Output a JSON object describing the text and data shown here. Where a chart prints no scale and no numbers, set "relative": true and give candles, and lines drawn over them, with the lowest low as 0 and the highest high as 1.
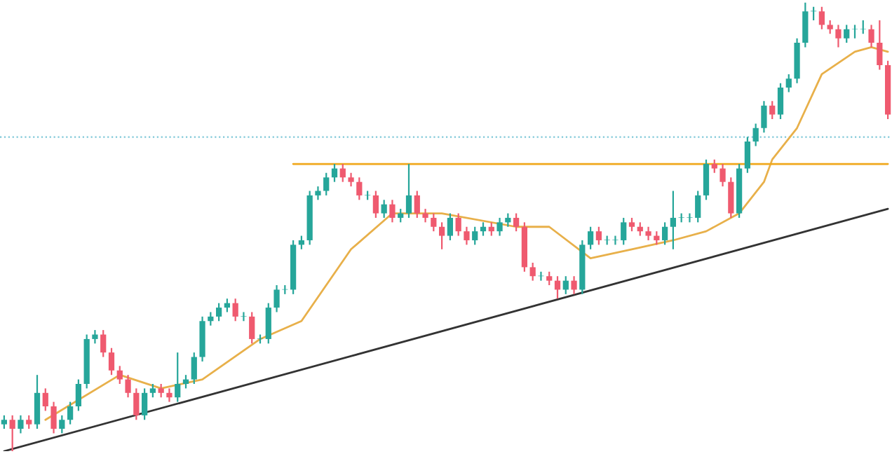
{
  "chart_data": {
    "type": "candlestick",
    "relative": true,
    "legend": false,
    "tick_labels": false,
    "categories": [
      null,
      null,
      null,
      null,
      null,
      null,
      null,
      null,
      null,
      null,
      null,
      null,
      null,
      null,
      null,
      null,
      null,
      null,
      null,
      null,
      null,
      null,
      null,
      null,
      null,
      null,
      null,
      null,
      null,
      null,
      null,
      null,
      null,
      null,
      null,
      null,
      null,
      null,
      null,
      null,
      null,
      null,
      null,
      null,
      null,
      null,
      null,
      null,
      null,
      null,
      null,
      null,
      null,
      null,
      null,
      null,
      null,
      null,
      null,
      null,
      null,
      null,
      null,
      null,
      null,
      null,
      null,
      null,
      null,
      null,
      null,
      null,
      null,
      null,
      null,
      null,
      null,
      null,
      null,
      null,
      null,
      null,
      null,
      null,
      null,
      null,
      null,
      null,
      null,
      null,
      null,
      null,
      null,
      null,
      null,
      null,
      null,
      null,
      null,
      null,
      null,
      null,
      null,
      null,
      null,
      null,
      null,
      null
    ],
    "colors": [
      "#26a69a",
      "#ef5a6f",
      "#26a69a",
      "#ef5a6f",
      "#26a69a",
      "#ef5a6f",
      "#ef5a6f",
      "#26a69a",
      "#26a69a",
      "#26a69a",
      "#26a69a",
      "#26a69a",
      "#ef5a6f",
      "#ef5a6f",
      "#ef5a6f",
      "#ef5a6f",
      "#ef5a6f",
      "#26a69a",
      "#26a69a",
      "#ef5a6f",
      "#ef5a6f",
      "#26a69a",
      "#26a69a",
      "#26a69a",
      "#26a69a",
      "#26a69a",
      "#26a69a",
      "#26a69a",
      "#ef5a6f",
      "#26a69a",
      "#ef5a6f",
      "#26a69a",
      "#26a69a",
      "#26a69a",
      "#26a69a",
      "#26a69a",
      "#26a69a",
      "#26a69a",
      "#26a69a",
      "#26a69a",
      "#26a69a",
      "#ef5a6f",
      "#ef5a6f",
      "#ef5a6f",
      "#26a69a",
      "#ef5a6f",
      "#26a69a",
      "#ef5a6f",
      "#26a69a",
      "#26a69a",
      "#ef5a6f",
      "#ef5a6f",
      "#ef5a6f",
      "#ef5a6f",
      "#26a69a",
      "#ef5a6f",
      "#ef5a6f",
      "#26a69a",
      "#26a69a",
      "#ef5a6f",
      "#26a69a",
      "#26a69a",
      "#ef5a6f",
      "#ef5a6f",
      "#ef5a6f",
      "#26a69a",
      "#ef5a6f",
      "#ef5a6f",
      "#26a69a",
      "#ef5a6f",
      "#26a69a",
      "#26a69a",
      "#ef5a6f",
      "#26a69a",
      "#26a69a",
      "#26a69a",
      "#ef5a6f",
      "#ef5a6f",
      "#ef5a6f",
      "#ef5a6f",
      "#26a69a",
      "#26a69a",
      "#26a69a",
      "#26a69a",
      "#26a69a",
      "#26a69a",
      "#ef5a6f",
      "#ef5a6f",
      "#ef5a6f",
      "#26a69a",
      "#26a69a",
      "#26a69a",
      "#26a69a",
      "#ef5a6f",
      "#26a69a",
      "#26a69a",
      "#26a69a",
      "#26a69a",
      "#26a69a",
      "#ef5a6f",
      "#ef5a6f",
      "#ef5a6f",
      "#26a69a",
      "#26a69a",
      "#26a69a",
      "#ef5a6f",
      "#ef5a6f",
      "#ef5a6f"
    ],
    "ohlc": [
      [
        0.06,
        0.08,
        0.05,
        0.07
      ],
      [
        0.07,
        0.08,
        0,
        0.05
      ],
      [
        0.05,
        0.08,
        0.04,
        0.07
      ],
      [
        0.07,
        0.08,
        0.05,
        0.06
      ],
      [
        0.06,
        0.17,
        0.05,
        0.13
      ],
      [
        0.13,
        0.14,
        0.09,
        0.1
      ],
      [
        0.1,
        0.11,
        0.04,
        0.05
      ],
      [
        0.05,
        0.08,
        0.04,
        0.07
      ],
      [
        0.07,
        0.11,
        0.06,
        0.1
      ],
      [
        0.1,
        0.16,
        0.09,
        0.15
      ],
      [
        0.15,
        0.26,
        0.14,
        0.25
      ],
      [
        0.25,
        0.27,
        0.24,
        0.26
      ],
      [
        0.26,
        0.27,
        0.21,
        0.22
      ],
      [
        0.22,
        0.23,
        0.17,
        0.18
      ],
      [
        0.18,
        0.19,
        0.15,
        0.16
      ],
      [
        0.16,
        0.17,
        0.12,
        0.13
      ],
      [
        0.13,
        0.14,
        0.07,
        0.08
      ],
      [
        0.08,
        0.14,
        0.07,
        0.13
      ],
      [
        0.13,
        0.15,
        0.12,
        0.14
      ],
      [
        0.14,
        0.15,
        0.12,
        0.13
      ],
      [
        0.13,
        0.14,
        0.11,
        0.12
      ],
      [
        0.12,
        0.22,
        0.11,
        0.15
      ],
      [
        0.15,
        0.17,
        0.14,
        0.16
      ],
      [
        0.16,
        0.22,
        0.15,
        0.21
      ],
      [
        0.21,
        0.3,
        0.2,
        0.29
      ],
      [
        0.29,
        0.31,
        0.28,
        0.3
      ],
      [
        0.3,
        0.33,
        0.29,
        0.32
      ],
      [
        0.32,
        0.34,
        0.31,
        0.33
      ],
      [
        0.33,
        0.34,
        0.29,
        0.3
      ],
      [
        0.3,
        0.31,
        0.29,
        0.3
      ],
      [
        0.3,
        0.31,
        0.24,
        0.25
      ],
      [
        0.25,
        0.26,
        0.24,
        0.25
      ],
      [
        0.25,
        0.33,
        0.24,
        0.32
      ],
      [
        0.32,
        0.37,
        0.31,
        0.36
      ],
      [
        0.36,
        0.37,
        0.35,
        0.36
      ],
      [
        0.36,
        0.47,
        0.35,
        0.46
      ],
      [
        0.46,
        0.48,
        0.45,
        0.47
      ],
      [
        0.47,
        0.58,
        0.46,
        0.57
      ],
      [
        0.57,
        0.59,
        0.56,
        0.58
      ],
      [
        0.58,
        0.62,
        0.57,
        0.61
      ],
      [
        0.61,
        0.64,
        0.6,
        0.63
      ],
      [
        0.63,
        0.64,
        0.6,
        0.61
      ],
      [
        0.61,
        0.62,
        0.59,
        0.6
      ],
      [
        0.6,
        0.61,
        0.56,
        0.57
      ],
      [
        0.57,
        0.58,
        0.56,
        0.57
      ],
      [
        0.57,
        0.58,
        0.52,
        0.53
      ],
      [
        0.53,
        0.56,
        0.52,
        0.55
      ],
      [
        0.55,
        0.56,
        0.51,
        0.52
      ],
      [
        0.52,
        0.54,
        0.51,
        0.53
      ],
      [
        0.53,
        0.64,
        0.52,
        0.57
      ],
      [
        0.57,
        0.58,
        0.52,
        0.53
      ],
      [
        0.53,
        0.54,
        0.51,
        0.52
      ],
      [
        0.52,
        0.53,
        0.49,
        0.5
      ],
      [
        0.5,
        0.51,
        0.45,
        0.48
      ],
      [
        0.48,
        0.53,
        0.47,
        0.52
      ],
      [
        0.52,
        0.53,
        0.48,
        0.49
      ],
      [
        0.49,
        0.5,
        0.46,
        0.47
      ],
      [
        0.47,
        0.5,
        0.46,
        0.49
      ],
      [
        0.49,
        0.51,
        0.48,
        0.5
      ],
      [
        0.5,
        0.51,
        0.48,
        0.49
      ],
      [
        0.49,
        0.52,
        0.48,
        0.51
      ],
      [
        0.51,
        0.53,
        0.5,
        0.52
      ],
      [
        0.52,
        0.53,
        0.49,
        0.5
      ],
      [
        0.5,
        0.51,
        0.4,
        0.41
      ],
      [
        0.41,
        0.42,
        0.38,
        0.39
      ],
      [
        0.39,
        0.4,
        0.38,
        0.39
      ],
      [
        0.39,
        0.4,
        0.37,
        0.38
      ],
      [
        0.38,
        0.39,
        0.34,
        0.36
      ],
      [
        0.36,
        0.39,
        0.35,
        0.38
      ],
      [
        0.38,
        0.39,
        0.35,
        0.36
      ],
      [
        0.36,
        0.47,
        0.35,
        0.46
      ],
      [
        0.46,
        0.5,
        0.45,
        0.49
      ],
      [
        0.49,
        0.5,
        0.46,
        0.47
      ],
      [
        0.47,
        0.48,
        0.46,
        0.47
      ],
      [
        0.47,
        0.48,
        0.46,
        0.47
      ],
      [
        0.47,
        0.52,
        0.46,
        0.51
      ],
      [
        0.51,
        0.52,
        0.49,
        0.5
      ],
      [
        0.5,
        0.51,
        0.48,
        0.49
      ],
      [
        0.49,
        0.5,
        0.47,
        0.48
      ],
      [
        0.48,
        0.49,
        0.46,
        0.47
      ],
      [
        0.47,
        0.51,
        0.46,
        0.5
      ],
      [
        0.5,
        0.58,
        0.45,
        0.52
      ],
      [
        0.52,
        0.53,
        0.51,
        0.52
      ],
      [
        0.52,
        0.53,
        0.51,
        0.52
      ],
      [
        0.52,
        0.58,
        0.51,
        0.57
      ],
      [
        0.57,
        0.65,
        0.56,
        0.64
      ],
      [
        0.64,
        0.65,
        0.62,
        0.63
      ],
      [
        0.63,
        0.64,
        0.59,
        0.6
      ],
      [
        0.6,
        0.61,
        0.52,
        0.53
      ],
      [
        0.53,
        0.64,
        0.52,
        0.63
      ],
      [
        0.63,
        0.7,
        0.62,
        0.69
      ],
      [
        0.69,
        0.73,
        0.68,
        0.72
      ],
      [
        0.72,
        0.78,
        0.71,
        0.77
      ],
      [
        0.77,
        0.78,
        0.74,
        0.75
      ],
      [
        0.75,
        0.82,
        0.74,
        0.81
      ],
      [
        0.81,
        0.84,
        0.8,
        0.83
      ],
      [
        0.83,
        0.92,
        0.82,
        0.91
      ],
      [
        0.91,
        1.0,
        0.9,
        0.98
      ],
      [
        0.98,
        0.99,
        0.96,
        0.98
      ],
      [
        0.98,
        0.99,
        0.94,
        0.95
      ],
      [
        0.95,
        0.96,
        0.93,
        0.94
      ],
      [
        0.94,
        0.95,
        0.9,
        0.92
      ],
      [
        0.92,
        0.95,
        0.91,
        0.94
      ],
      [
        0.94,
        0.95,
        0.92,
        0.94
      ],
      [
        0.94,
        0.96,
        0.93,
        0.94
      ],
      [
        0.94,
        0.95,
        0.9,
        0.91
      ],
      [
        0.91,
        0.96,
        0.85,
        0.86
      ],
      [
        0.86,
        0.87,
        0.74,
        0.75
      ]
    ],
    "series": [
      {
        "type": "line",
        "color": "#e8b04a",
        "values": [
          null,
          null,
          null,
          null,
          null,
          0.07,
          null,
          null,
          null,
          null,
          null,
          null,
          null,
          null,
          0.17,
          null,
          null,
          null,
          null,
          0.14,
          null,
          null,
          null,
          null,
          0.16,
          null,
          null,
          null,
          null,
          null,
          null,
          0.25,
          null,
          null,
          null,
          null,
          0.29,
          null,
          null,
          null,
          null,
          null,
          0.45,
          null,
          null,
          null,
          null,
          0.53,
          null,
          null,
          null,
          null,
          null,
          0.53,
          null,
          null,
          null,
          null,
          null,
          null,
          null,
          null,
          0.5,
          null,
          null,
          null,
          0.5,
          null,
          null,
          null,
          null,
          0.43,
          null,
          null,
          null,
          null,
          0.45,
          null,
          null,
          null,
          null,
          0.47,
          null,
          null,
          null,
          0.49,
          null,
          null,
          null,
          0.53,
          null,
          null,
          0.6,
          0.65,
          null,
          null,
          0.72,
          null,
          null,
          0.84,
          null,
          null,
          null,
          0.89,
          null,
          0.9,
          null,
          0.89
        ]
      },
      {
        "type": "line",
        "color": "#333333",
        "values": [
          0,
          null,
          null,
          null,
          null,
          null,
          null,
          null,
          null,
          null,
          null,
          null,
          null,
          null,
          null,
          null,
          null,
          null,
          null,
          null,
          null,
          null,
          null,
          null,
          null,
          null,
          null,
          null,
          null,
          null,
          null,
          null,
          null,
          null,
          null,
          null,
          null,
          null,
          null,
          null,
          null,
          null,
          null,
          null,
          null,
          null,
          null,
          null,
          null,
          null,
          null,
          null,
          null,
          null,
          null,
          null,
          null,
          null,
          null,
          null,
          null,
          null,
          null,
          null,
          null,
          null,
          null,
          null,
          null,
          null,
          null,
          null,
          null,
          null,
          null,
          null,
          null,
          null,
          null,
          null,
          null,
          null,
          null,
          null,
          null,
          null,
          null,
          null,
          null,
          null,
          null,
          null,
          null,
          null,
          null,
          null,
          null,
          null,
          null,
          null,
          null,
          null,
          null,
          null,
          null,
          null,
          null,
          0.54
        ]
      },
      {
        "type": "line",
        "color": "#f0a81c",
        "values": [
          null,
          null,
          null,
          null,
          null,
          null,
          null,
          null,
          null,
          null,
          null,
          null,
          null,
          null,
          null,
          null,
          null,
          null,
          null,
          null,
          null,
          null,
          null,
          null,
          null,
          null,
          null,
          null,
          null,
          null,
          null,
          null,
          null,
          null,
          null,
          0.64,
          null,
          null,
          null,
          null,
          null,
          null,
          null,
          null,
          null,
          null,
          null,
          null,
          null,
          null,
          null,
          null,
          null,
          null,
          null,
          null,
          null,
          null,
          null,
          null,
          null,
          null,
          null,
          null,
          null,
          null,
          null,
          null,
          null,
          null,
          null,
          null,
          null,
          null,
          null,
          null,
          null,
          null,
          null,
          null,
          null,
          null,
          null,
          null,
          null,
          null,
          null,
          null,
          null,
          null,
          null,
          null,
          null,
          null,
          null,
          null,
          null,
          null,
          null,
          null,
          null,
          null,
          null,
          null,
          null,
          null,
          null,
          0.64
        ]
      }
    ],
    "ref_lines": [
      {
        "axis": "y",
        "value": 0.7,
        "color": "#7fc8d8",
        "line_style": "dotted"
      }
    ]
  }
}
